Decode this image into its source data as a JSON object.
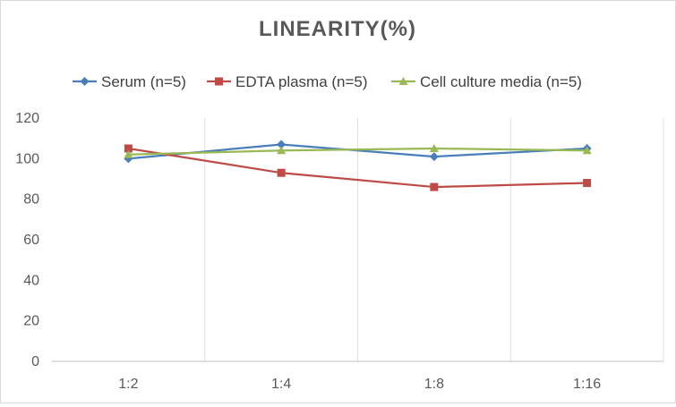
{
  "chart_data": {
    "type": "line",
    "title": "LINEARITY(%)",
    "xlabel": "",
    "ylabel": "",
    "categories": [
      "1:2",
      "1:4",
      "1:8",
      "1:16"
    ],
    "ylim": [
      0,
      120
    ],
    "yticks": [
      0,
      20,
      40,
      60,
      80,
      100,
      120
    ],
    "grid": "vertical",
    "legend_position": "top",
    "series": [
      {
        "name": "Serum (n=5)",
        "values": [
          100,
          107,
          101,
          105
        ],
        "color": "#4a7ebb",
        "marker": "diamond"
      },
      {
        "name": "EDTA plasma (n=5)",
        "values": [
          105,
          93,
          86,
          88
        ],
        "color": "#be4b48",
        "marker": "square"
      },
      {
        "name": "Cell culture media (n=5)",
        "values": [
          102,
          104,
          105,
          104
        ],
        "color": "#98b954",
        "marker": "triangle"
      }
    ]
  }
}
